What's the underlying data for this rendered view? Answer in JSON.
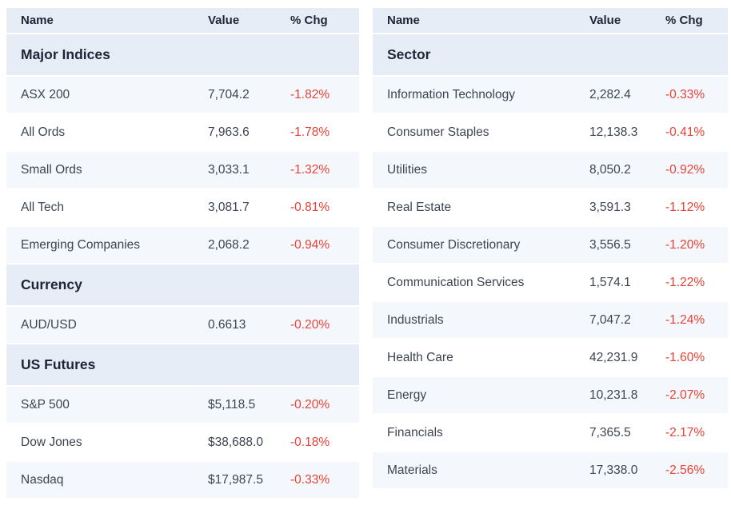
{
  "colors": {
    "header_bg": "#e7edf6",
    "row_tint": "#f4f8fc",
    "row_plain": "#ffffff",
    "negative": "#e94135",
    "heading_text": "#1d2636",
    "body_text": "#3d4450",
    "page_bg": "#ffffff"
  },
  "columns": [
    "Name",
    "Value",
    "% Chg"
  ],
  "tables": [
    {
      "id": "indices",
      "sections": [
        {
          "title": "Major Indices",
          "rows": [
            {
              "name": "ASX 200",
              "value": "7,704.2",
              "chg": "-1.82%"
            },
            {
              "name": "All Ords",
              "value": "7,963.6",
              "chg": "-1.78%"
            },
            {
              "name": "Small Ords",
              "value": "3,033.1",
              "chg": "-1.32%"
            },
            {
              "name": "All Tech",
              "value": "3,081.7",
              "chg": "-0.81%"
            },
            {
              "name": "Emerging Companies",
              "value": "2,068.2",
              "chg": "-0.94%"
            }
          ]
        },
        {
          "title": "Currency",
          "rows": [
            {
              "name": "AUD/USD",
              "value": "0.6613",
              "chg": "-0.20%"
            }
          ]
        },
        {
          "title": "US Futures",
          "rows": [
            {
              "name": "S&P 500",
              "value": "$5,118.5",
              "chg": "-0.20%"
            },
            {
              "name": "Dow Jones",
              "value": "$38,688.0",
              "chg": "-0.18%"
            },
            {
              "name": "Nasdaq",
              "value": "$17,987.5",
              "chg": "-0.33%"
            }
          ]
        }
      ]
    },
    {
      "id": "sectors",
      "sections": [
        {
          "title": "Sector",
          "rows": [
            {
              "name": "Information Technology",
              "value": "2,282.4",
              "chg": "-0.33%"
            },
            {
              "name": "Consumer Staples",
              "value": "12,138.3",
              "chg": "-0.41%"
            },
            {
              "name": "Utilities",
              "value": "8,050.2",
              "chg": "-0.92%"
            },
            {
              "name": "Real Estate",
              "value": "3,591.3",
              "chg": "-1.12%"
            },
            {
              "name": "Consumer Discretionary",
              "value": "3,556.5",
              "chg": "-1.20%"
            },
            {
              "name": "Communication Services",
              "value": "1,574.1",
              "chg": "-1.22%"
            },
            {
              "name": "Industrials",
              "value": "7,047.2",
              "chg": "-1.24%"
            },
            {
              "name": "Health Care",
              "value": "42,231.9",
              "chg": "-1.60%"
            },
            {
              "name": "Energy",
              "value": "10,231.8",
              "chg": "-2.07%"
            },
            {
              "name": "Financials",
              "value": "7,365.5",
              "chg": "-2.17%"
            },
            {
              "name": "Materials",
              "value": "17,338.0",
              "chg": "-2.56%"
            }
          ]
        }
      ]
    }
  ]
}
